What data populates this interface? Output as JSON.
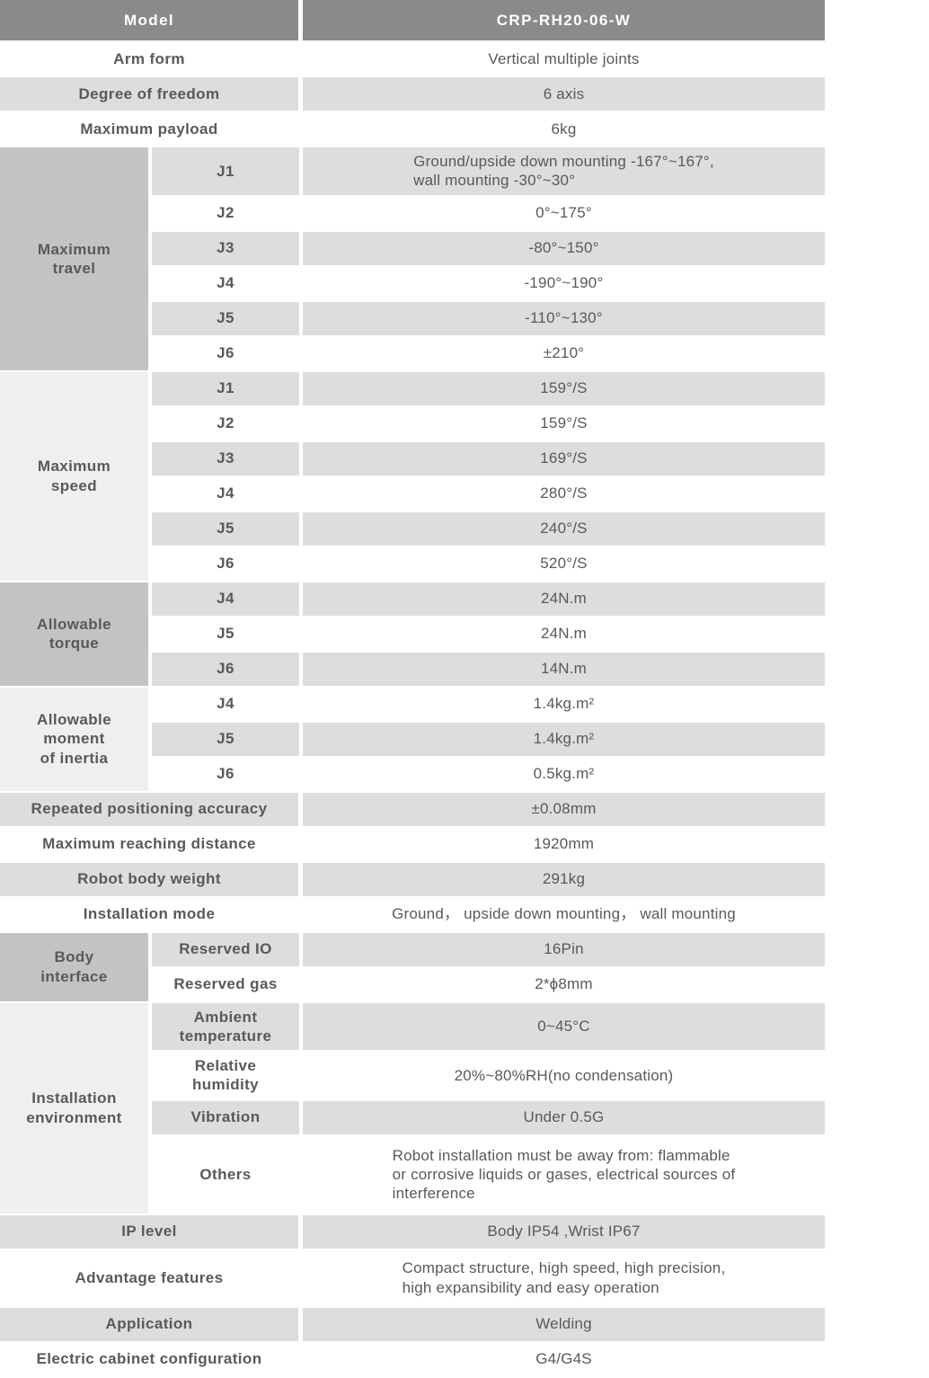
{
  "colors": {
    "header_bg": "#8a8a8a",
    "header_text": "#ffffff",
    "row_gray": "#dcdddd",
    "row_white": "#ffffff",
    "section_dark": "#c2c3c3",
    "section_light": "#efefef",
    "text": "#58595b"
  },
  "table": {
    "header": {
      "label": "Model",
      "value": "CRP-RH20-06-W"
    },
    "rows": [
      {
        "type": "simple",
        "label": "Arm form",
        "value": "Vertical multiple joints",
        "shade": "white"
      },
      {
        "type": "simple",
        "label": "Degree of freedom",
        "value": "6 axis",
        "shade": "gray"
      },
      {
        "type": "simple",
        "label": "Maximum payload",
        "value": "6kg",
        "shade": "white"
      },
      {
        "type": "group",
        "label": "Maximum\ntravel",
        "tone": "dark",
        "items": [
          {
            "sub": "J1",
            "value": "Ground/upside down mounting -167°~167°,\nwall mounting -30°~30°",
            "shade": "gray"
          },
          {
            "sub": "J2",
            "value": "0°~175°",
            "shade": "white"
          },
          {
            "sub": "J3",
            "value": "-80°~150°",
            "shade": "gray"
          },
          {
            "sub": "J4",
            "value": "-190°~190°",
            "shade": "white"
          },
          {
            "sub": "J5",
            "value": "-110°~130°",
            "shade": "gray"
          },
          {
            "sub": "J6",
            "value": "±210°",
            "shade": "white"
          }
        ]
      },
      {
        "type": "group",
        "label": "Maximum\nspeed",
        "tone": "light",
        "items": [
          {
            "sub": "J1",
            "value": "159°/S",
            "shade": "gray"
          },
          {
            "sub": "J2",
            "value": "159°/S",
            "shade": "white"
          },
          {
            "sub": "J3",
            "value": "169°/S",
            "shade": "gray"
          },
          {
            "sub": "J4",
            "value": "280°/S",
            "shade": "white"
          },
          {
            "sub": "J5",
            "value": "240°/S",
            "shade": "gray"
          },
          {
            "sub": "J6",
            "value": "520°/S",
            "shade": "white"
          }
        ]
      },
      {
        "type": "group",
        "label": "Allowable\ntorque",
        "tone": "dark",
        "items": [
          {
            "sub": "J4",
            "value": "24N.m",
            "shade": "gray"
          },
          {
            "sub": "J5",
            "value": "24N.m",
            "shade": "white"
          },
          {
            "sub": "J6",
            "value": "14N.m",
            "shade": "gray"
          }
        ]
      },
      {
        "type": "group",
        "label": "Allowable\nmoment\nof inertia",
        "tone": "light",
        "items": [
          {
            "sub": "J4",
            "value": "1.4kg.m²",
            "shade": "white"
          },
          {
            "sub": "J5",
            "value": "1.4kg.m²",
            "shade": "gray"
          },
          {
            "sub": "J6",
            "value": "0.5kg.m²",
            "shade": "white"
          }
        ]
      },
      {
        "type": "simple",
        "label": "Repeated positioning accuracy",
        "value": "±0.08mm",
        "shade": "gray"
      },
      {
        "type": "simple",
        "label": "Maximum reaching distance",
        "value": "1920mm",
        "shade": "white"
      },
      {
        "type": "simple",
        "label": "Robot body weight",
        "value": "291kg",
        "shade": "gray"
      },
      {
        "type": "simple",
        "label": "Installation mode",
        "value": "Ground， upside down mounting， wall mounting",
        "shade": "white"
      },
      {
        "type": "group",
        "label": "Body\ninterface",
        "tone": "dark",
        "items": [
          {
            "sub": "Reserved IO",
            "value": "16Pin",
            "shade": "gray"
          },
          {
            "sub": "Reserved gas",
            "value": "2*ϕ8mm",
            "shade": "white"
          }
        ]
      },
      {
        "type": "group",
        "label": "Installation\nenvironment",
        "tone": "light",
        "items": [
          {
            "sub": "Ambient\ntemperature",
            "value": "0~45°C",
            "shade": "gray"
          },
          {
            "sub": "Relative\nhumidity",
            "value": "20%~80%RH(no condensation)",
            "shade": "white"
          },
          {
            "sub": "Vibration",
            "value": "Under 0.5G",
            "shade": "gray"
          },
          {
            "sub": "Others",
            "value": "Robot installation must be away from: flammable\nor corrosive liquids or gases, electrical sources of\ninterference",
            "shade": "white",
            "size": "xtall"
          }
        ]
      },
      {
        "type": "simple",
        "label": "IP level",
        "value": "Body IP54 ,Wrist IP67",
        "shade": "gray"
      },
      {
        "type": "simple",
        "label": "Advantage features",
        "value": "Compact structure, high speed, high precision,\nhigh expansibility and easy operation",
        "shade": "white",
        "size": "mtall"
      },
      {
        "type": "simple",
        "label": "Application",
        "value": "Welding",
        "shade": "gray"
      },
      {
        "type": "simple",
        "label": "Electric cabinet configuration",
        "value": "G4/G4S",
        "shade": "white"
      }
    ]
  }
}
